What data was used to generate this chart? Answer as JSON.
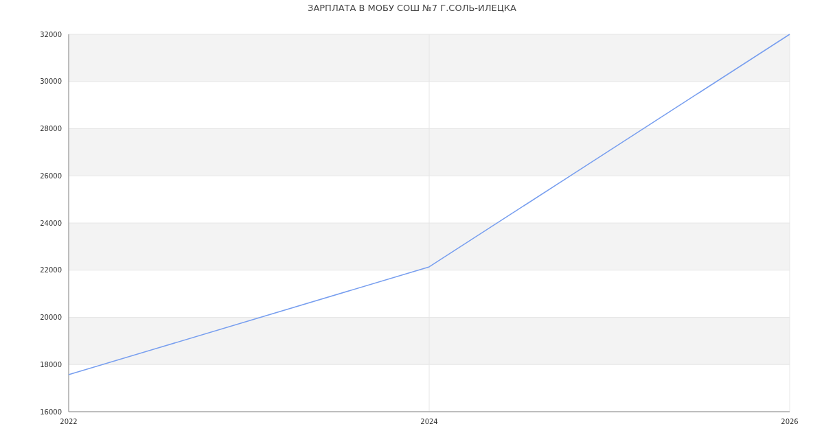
{
  "chart_data": {
    "type": "line",
    "title": "ЗАРПЛАТА В МОБУ СОШ №7 Г.СОЛЬ-ИЛЕЦКА",
    "x": [
      2022,
      2024,
      2026
    ],
    "series": [
      {
        "color": "#779eef",
        "values": [
          17570,
          22140,
          32000
        ]
      }
    ],
    "xlim": [
      2022,
      2026
    ],
    "xticks": [
      2022,
      2024,
      2026
    ],
    "ylim": [
      16000,
      32000
    ],
    "yticks": [
      16000,
      18000,
      20000,
      22000,
      24000,
      26000,
      28000,
      30000,
      32000
    ],
    "grid": true,
    "marker": "none",
    "line_style": "solid"
  }
}
